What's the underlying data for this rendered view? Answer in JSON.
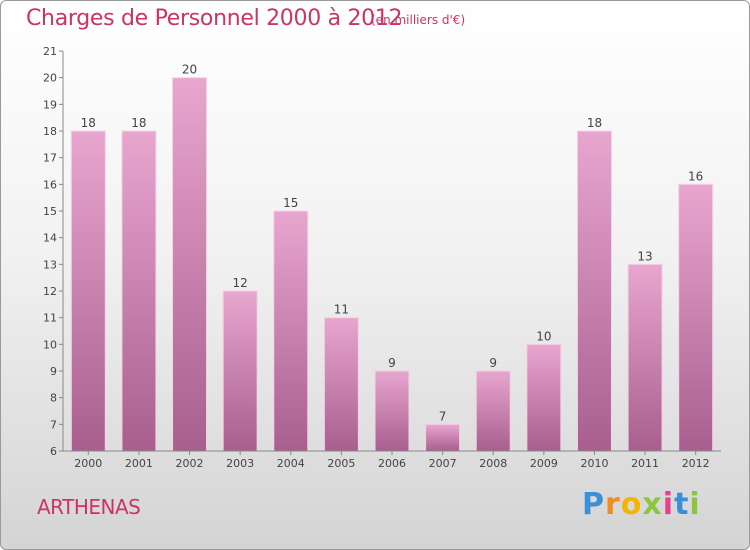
{
  "header": {
    "title": "Charges de Personnel 2000 à 2012",
    "subtitle": "(en milliers d'€)"
  },
  "footer": {
    "commune": "ARTHENAS",
    "logo_letters": [
      "P",
      "r",
      "o",
      "x",
      "i",
      "t",
      "i"
    ]
  },
  "colors": {
    "title": "#cc3366",
    "bar_top": "#e8a6cf",
    "bar_bottom": "#a85f8e"
  },
  "chart_data": {
    "type": "bar",
    "title": "Charges de Personnel 2000 à 2012",
    "subtitle": "(en milliers d'€)",
    "categories": [
      "2000",
      "2001",
      "2002",
      "2003",
      "2004",
      "2005",
      "2006",
      "2007",
      "2008",
      "2009",
      "2010",
      "2011",
      "2012"
    ],
    "values": [
      18,
      18,
      20,
      12,
      15,
      11,
      9,
      7,
      9,
      10,
      18,
      13,
      16
    ],
    "ylim": [
      6,
      21
    ],
    "yticks": [
      6,
      7,
      8,
      9,
      10,
      11,
      12,
      13,
      14,
      15,
      16,
      17,
      18,
      19,
      20,
      21
    ],
    "grid": false,
    "legend": "none",
    "data_labels": true
  }
}
